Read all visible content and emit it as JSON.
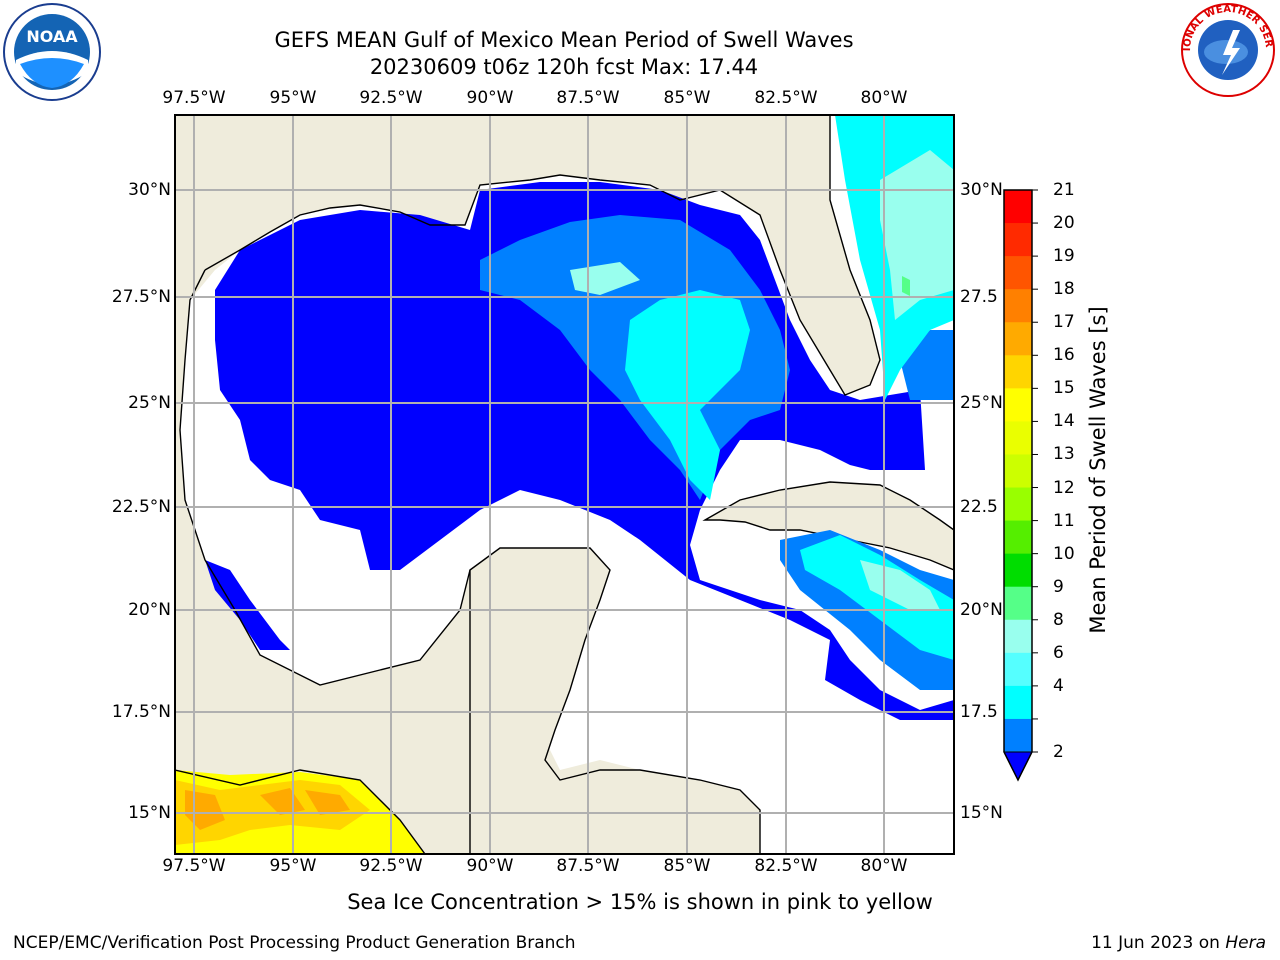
{
  "header": {
    "title_line1": "GEFS MEAN Gulf of Mexico Mean Period of Swell Waves",
    "title_line2": "20230609 t06z 120h fcst   Max: 17.44"
  },
  "map": {
    "lon_labels": [
      "97.5°W",
      "95°W",
      "92.5°W",
      "90°W",
      "87.5°W",
      "85°W",
      "82.5°W",
      "80°W"
    ],
    "lat_labels_left": [
      "30°N",
      "27.5°N",
      "25°N",
      "22.5°N",
      "20°N",
      "17.5°N",
      "15°N"
    ],
    "lat_labels_right": [
      "30°N",
      "27.5",
      "25°N",
      "22.5",
      "20°N",
      "17.5",
      "15°N"
    ],
    "land_color": "#efecdc",
    "ocean_no_data_color": "#ffffff",
    "grid_color": "#b0b0b0"
  },
  "colorbar": {
    "title": "Mean Period of Swell Waves [s]",
    "tick_labels": [
      "21",
      "20",
      "19",
      "18",
      "17",
      "16",
      "15",
      "14",
      "13",
      "12",
      "11",
      "10",
      "9",
      "8",
      "6",
      "4",
      "2"
    ],
    "colors": [
      "#ff0000",
      "#ff2a00",
      "#ff5500",
      "#ff8000",
      "#ffaa00",
      "#ffd500",
      "#ffff00",
      "#eaff00",
      "#ccff00",
      "#99ff00",
      "#55ee00",
      "#00dd00",
      "#55ff88",
      "#99ffee",
      "#55ffff",
      "#00ffff",
      "#0080ff"
    ],
    "extend_color": "#0000ff"
  },
  "legend": {
    "sea_ice_note": "Sea Ice Concentration > 15% is shown in pink to yellow"
  },
  "footer": {
    "left": "NCEP/EMC/Verification Post Processing Product Generation Branch",
    "right_date": "11 Jun 2023 on ",
    "right_host": "Hera"
  },
  "logos": {
    "left": "noaa-logo",
    "right": "national-weather-service-logo",
    "nws_text": "NATIONAL WEATHER SERVICE"
  }
}
